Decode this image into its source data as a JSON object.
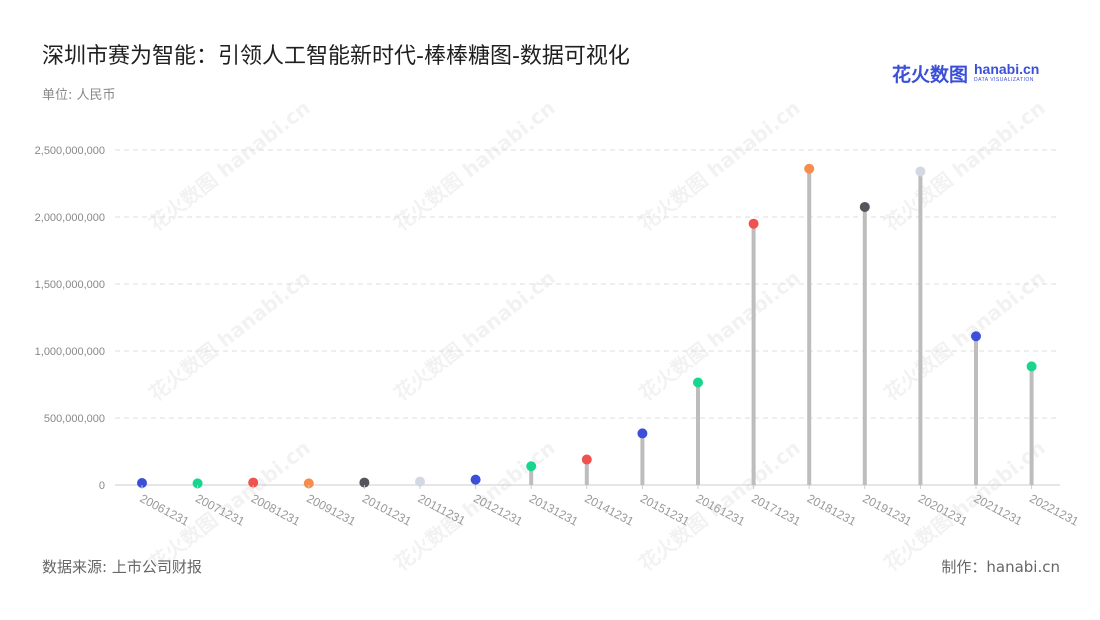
{
  "title": "深圳市赛为智能：引领人工智能新时代-棒棒糖图-数据可视化",
  "unit": "单位: 人民币",
  "source": "数据来源: 上市公司财报",
  "credit": "制作：hanabi.cn",
  "logo": {
    "cn": "花火数图",
    "en": "hanabi.cn",
    "sub": "DATA VISUALIZATION"
  },
  "watermark": "花火数图 hanabi.cn",
  "chart_data": {
    "type": "lollipop",
    "categories": [
      "20061231",
      "20071231",
      "20081231",
      "20091231",
      "20101231",
      "20111231",
      "20121231",
      "20131231",
      "20141231",
      "20151231",
      "20161231",
      "20171231",
      "20181231",
      "20191231",
      "20201231",
      "20211231",
      "20221231"
    ],
    "values": [
      15000000,
      12000000,
      18000000,
      12000000,
      18000000,
      25000000,
      40000000,
      140000000,
      190000000,
      385000000,
      765000000,
      1950000000,
      2360000000,
      2075000000,
      2340000000,
      1110000000,
      885000000
    ],
    "ylim": [
      0,
      2500000000
    ],
    "yticks": [
      0,
      500000000,
      1000000000,
      1500000000,
      2000000000,
      2500000000
    ],
    "ytick_labels": [
      "0",
      "500,000,000",
      "1,000,000,000",
      "1,500,000,000",
      "2,000,000,000",
      "2,500,000,000"
    ],
    "grid": true,
    "stem_color": "#bdbdbd",
    "dot_colors": [
      "#3b4fd8",
      "#19d68f",
      "#f0524f",
      "#f78c4d",
      "#55555e",
      "#d3d8e3",
      "#3b4fd8",
      "#19d68f",
      "#f0524f",
      "#3b4fd8",
      "#19d68f",
      "#f0524f",
      "#f78c4d",
      "#55555e",
      "#d3d8e3",
      "#3b4fd8",
      "#19d68f"
    ]
  }
}
